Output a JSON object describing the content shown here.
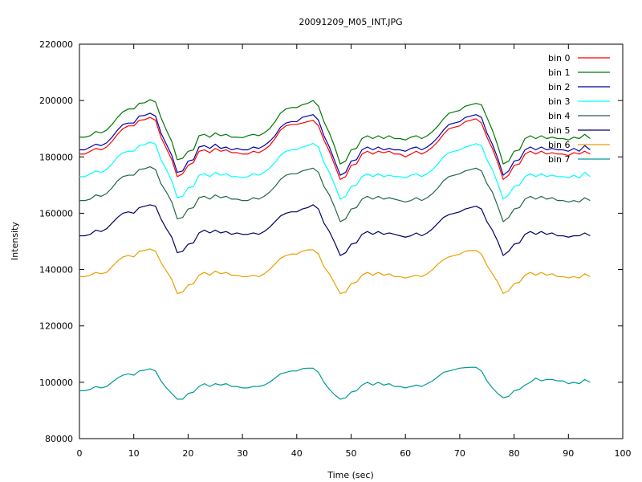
{
  "chart_data": {
    "type": "line",
    "title": "20091209_M05_INT.JPG",
    "xlabel": "Time (sec)",
    "ylabel": "Intensity",
    "xlim": [
      0,
      100
    ],
    "ylim": [
      80000,
      220000
    ],
    "xticks": [
      0,
      10,
      20,
      30,
      40,
      50,
      60,
      70,
      80,
      90,
      100
    ],
    "yticks": [
      80000,
      100000,
      120000,
      140000,
      160000,
      180000,
      200000,
      220000
    ],
    "grid": false,
    "legend_position": "top-right",
    "x": [
      0,
      1,
      2,
      3,
      4,
      5,
      6,
      7,
      8,
      9,
      10,
      11,
      12,
      13,
      14,
      15,
      16,
      17,
      18,
      19,
      20,
      21,
      22,
      23,
      24,
      25,
      26,
      27,
      28,
      29,
      30,
      31,
      32,
      33,
      34,
      35,
      36,
      37,
      38,
      39,
      40,
      41,
      42,
      43,
      44,
      45,
      46,
      47,
      48,
      49,
      50,
      51,
      52,
      53,
      54,
      55,
      56,
      57,
      58,
      59,
      60,
      61,
      62,
      63,
      64,
      65,
      66,
      67,
      68,
      69,
      70,
      71,
      72,
      73,
      74,
      75,
      76,
      77,
      78,
      79,
      80,
      81,
      82,
      83,
      84,
      85,
      86,
      87,
      88,
      89,
      90,
      91,
      92,
      93,
      94
    ],
    "series": [
      {
        "name": "bin 0",
        "color": "#ff0000",
        "values": [
          181000,
          181000,
          182000,
          183000,
          182500,
          183500,
          185500,
          188000,
          190000,
          191000,
          191000,
          193000,
          193200,
          194000,
          193000,
          187000,
          183000,
          179000,
          173000,
          174000,
          177000,
          178000,
          182000,
          182500,
          181500,
          183000,
          182000,
          182500,
          181500,
          181500,
          181000,
          181000,
          182000,
          181500,
          182500,
          184000,
          186500,
          189500,
          191000,
          191500,
          191500,
          192000,
          192500,
          193000,
          191000,
          186000,
          182000,
          177000,
          172000,
          173000,
          177000,
          177500,
          181000,
          182000,
          181000,
          182000,
          181500,
          182000,
          181000,
          181000,
          180000,
          181000,
          182000,
          181000,
          182000,
          183500,
          185500,
          188000,
          190000,
          190500,
          191000,
          192500,
          193000,
          193500,
          192000,
          187000,
          183000,
          178000,
          172000,
          173500,
          177000,
          177500,
          181000,
          182000,
          181000,
          182000,
          181000,
          181500,
          181000,
          181000,
          180500,
          181500,
          181000,
          182000,
          181000
        ]
      },
      {
        "name": "bin 1",
        "color": "#007700",
        "values": [
          187000,
          187000,
          187500,
          189000,
          188500,
          189500,
          191500,
          194000,
          196000,
          197000,
          197000,
          199000,
          199200,
          200300,
          199500,
          194000,
          189500,
          185500,
          179000,
          179500,
          182000,
          182500,
          187500,
          188000,
          187000,
          188500,
          187500,
          188000,
          187000,
          187000,
          186800,
          187500,
          188000,
          187500,
          188500,
          190000,
          192500,
          195500,
          197000,
          197500,
          197500,
          198500,
          199000,
          200000,
          198000,
          192500,
          188500,
          183500,
          177500,
          178500,
          182500,
          183000,
          186500,
          187500,
          186500,
          187500,
          186500,
          187500,
          186500,
          186500,
          186000,
          187000,
          187500,
          186500,
          187500,
          189000,
          191000,
          193500,
          195500,
          196000,
          196500,
          198000,
          198500,
          199000,
          198500,
          194000,
          189500,
          184000,
          177500,
          178500,
          182000,
          182500,
          186500,
          187500,
          186500,
          187500,
          186500,
          187000,
          186500,
          186500,
          186000,
          187000,
          186500,
          188000,
          186500
        ]
      },
      {
        "name": "bin 2",
        "color": "#0000aa",
        "values": [
          182500,
          182500,
          183500,
          184500,
          184000,
          185000,
          187000,
          189500,
          191500,
          192000,
          192000,
          194500,
          194700,
          195500,
          194500,
          188500,
          184500,
          180500,
          174500,
          175000,
          178500,
          179000,
          183500,
          184000,
          183000,
          184500,
          183000,
          183500,
          182500,
          183000,
          182500,
          182500,
          183500,
          183000,
          184000,
          185500,
          187500,
          190500,
          192000,
          192500,
          192500,
          194000,
          194500,
          195000,
          193000,
          187500,
          183500,
          178500,
          173500,
          174500,
          178500,
          179000,
          182500,
          183500,
          182500,
          183500,
          182500,
          183000,
          182500,
          182500,
          182000,
          183000,
          183500,
          182500,
          183500,
          185000,
          187000,
          189500,
          191500,
          192000,
          192500,
          194000,
          194500,
          195000,
          194000,
          188500,
          184500,
          179500,
          173500,
          175000,
          178500,
          179000,
          182500,
          183500,
          182500,
          183500,
          182500,
          183000,
          182500,
          182500,
          182000,
          183000,
          182000,
          184000,
          182500
        ]
      },
      {
        "name": "bin 3",
        "color": "#00ffff",
        "values": [
          173000,
          173000,
          174000,
          175000,
          174500,
          175500,
          177500,
          180000,
          181500,
          182000,
          182000,
          184000,
          184300,
          185300,
          184500,
          179000,
          175500,
          171500,
          165500,
          166000,
          169000,
          169500,
          173500,
          174000,
          173000,
          174500,
          173500,
          174000,
          173000,
          173000,
          172500,
          173000,
          174000,
          173500,
          174500,
          176000,
          178000,
          180500,
          182000,
          182500,
          182500,
          183500,
          184000,
          184800,
          183500,
          178000,
          174500,
          170000,
          165000,
          166000,
          169500,
          170000,
          173000,
          174000,
          173000,
          174000,
          173000,
          173500,
          173000,
          173000,
          172500,
          173500,
          174000,
          173000,
          174000,
          175500,
          177500,
          180000,
          181500,
          182000,
          182500,
          183500,
          184000,
          184700,
          184000,
          179000,
          175500,
          170500,
          165000,
          166500,
          169500,
          170000,
          173000,
          174000,
          173000,
          174000,
          173000,
          173500,
          173000,
          173000,
          172500,
          173500,
          172500,
          174500,
          173000
        ]
      },
      {
        "name": "bin 4",
        "color": "#226644",
        "values": [
          164500,
          164500,
          165000,
          166500,
          166000,
          167000,
          169000,
          171500,
          173000,
          173500,
          173500,
          175500,
          175800,
          176500,
          175500,
          170500,
          167500,
          164000,
          158000,
          158500,
          161500,
          162000,
          165500,
          166000,
          165000,
          166500,
          165500,
          166000,
          165000,
          165000,
          164500,
          164500,
          165500,
          165000,
          166000,
          167500,
          169500,
          172000,
          173500,
          174000,
          174000,
          175000,
          175500,
          176000,
          174500,
          169500,
          166500,
          162000,
          157000,
          158000,
          161500,
          162000,
          165000,
          166000,
          165000,
          166000,
          165000,
          165500,
          165000,
          164500,
          164000,
          164500,
          165500,
          164500,
          165500,
          167000,
          169000,
          171500,
          173000,
          173500,
          174000,
          175000,
          175500,
          176000,
          175000,
          170500,
          167500,
          162500,
          157000,
          158500,
          161500,
          162000,
          165000,
          166000,
          165000,
          166000,
          165000,
          165500,
          164500,
          164500,
          164000,
          164500,
          164000,
          165500,
          164500
        ]
      },
      {
        "name": "bin 5",
        "color": "#000066",
        "values": [
          152000,
          152000,
          152500,
          154000,
          153500,
          154500,
          156500,
          158500,
          160000,
          160500,
          160000,
          162000,
          162500,
          163000,
          162500,
          158000,
          154500,
          151500,
          146000,
          146500,
          149000,
          149500,
          153000,
          154000,
          153000,
          154000,
          153000,
          153500,
          152500,
          153000,
          152500,
          152500,
          153000,
          152500,
          153500,
          155000,
          157000,
          159000,
          160000,
          160500,
          160500,
          161500,
          162000,
          163000,
          161500,
          156500,
          153500,
          149500,
          145000,
          146000,
          149000,
          149500,
          152500,
          153500,
          152500,
          153500,
          152500,
          153000,
          152500,
          152000,
          151500,
          152000,
          153000,
          152000,
          153000,
          154500,
          156500,
          158500,
          159500,
          160000,
          160500,
          161500,
          162000,
          162500,
          161500,
          157000,
          154000,
          150000,
          145000,
          146500,
          149000,
          149500,
          152500,
          153500,
          152500,
          153500,
          152500,
          153000,
          152000,
          152000,
          151500,
          152000,
          152000,
          153000,
          152000
        ]
      },
      {
        "name": "bin 6",
        "color": "#e8a000",
        "values": [
          137500,
          137500,
          138000,
          139000,
          138500,
          139000,
          141000,
          143000,
          144500,
          145000,
          144500,
          146500,
          146800,
          147300,
          146500,
          142500,
          139500,
          136500,
          131500,
          132000,
          134500,
          135000,
          138000,
          139000,
          138000,
          139500,
          138500,
          139000,
          138000,
          138000,
          137500,
          137500,
          138000,
          137500,
          138500,
          140000,
          142000,
          144000,
          145000,
          145500,
          145500,
          146500,
          147000,
          147000,
          145500,
          141000,
          138500,
          135000,
          131500,
          132000,
          135000,
          135500,
          138000,
          139000,
          138000,
          139000,
          138000,
          138500,
          137500,
          137500,
          137000,
          137500,
          138000,
          137500,
          138500,
          140000,
          142000,
          143500,
          144500,
          145000,
          145500,
          146500,
          146800,
          146800,
          145500,
          141500,
          138500,
          135500,
          131500,
          132500,
          135000,
          135500,
          138000,
          139000,
          138000,
          139000,
          138000,
          138500,
          137500,
          137500,
          137000,
          137500,
          137000,
          138500,
          137500
        ]
      },
      {
        "name": "bin 7",
        "color": "#009999",
        "values": [
          97000,
          97000,
          97500,
          98500,
          98000,
          98500,
          100000,
          101500,
          102500,
          103000,
          102500,
          104000,
          104300,
          104800,
          104000,
          100500,
          98000,
          96000,
          94000,
          94000,
          96000,
          96500,
          98500,
          99500,
          98500,
          99500,
          99000,
          99500,
          98500,
          98500,
          98000,
          98000,
          98500,
          98500,
          99000,
          100000,
          101500,
          103000,
          103500,
          104000,
          104000,
          104800,
          105000,
          105000,
          103500,
          100000,
          97500,
          95500,
          94000,
          94500,
          96500,
          97000,
          99000,
          100000,
          99000,
          100000,
          99000,
          99500,
          98500,
          98500,
          98000,
          98500,
          99000,
          98500,
          99500,
          100500,
          102000,
          103500,
          104000,
          104500,
          105000,
          105200,
          105300,
          105300,
          104000,
          100500,
          98000,
          96000,
          94500,
          95000,
          97000,
          97500,
          99000,
          100000,
          101500,
          100500,
          101000,
          101000,
          100500,
          100500,
          99500,
          100000,
          99500,
          101000,
          100000
        ]
      }
    ]
  }
}
